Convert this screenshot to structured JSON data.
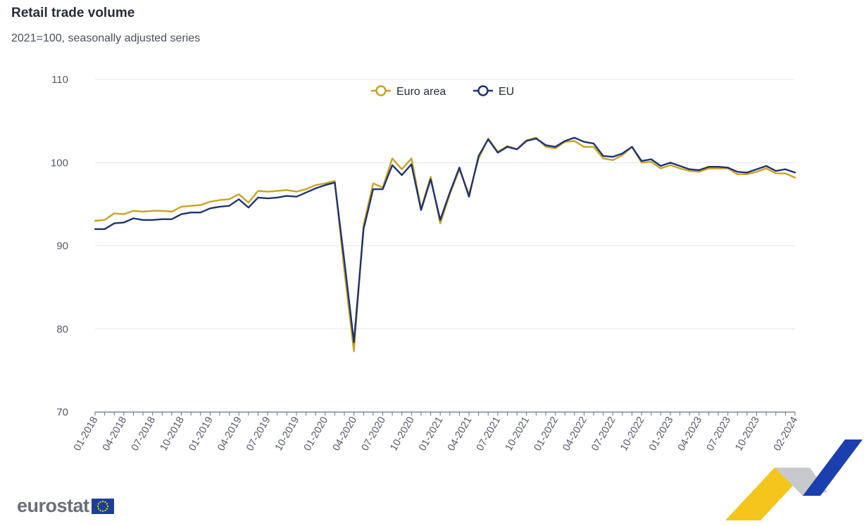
{
  "header": {
    "title": "Retail trade volume",
    "subtitle": "2021=100, seasonally adjusted series"
  },
  "brand": {
    "logo_text": "eurostat"
  },
  "colors": {
    "euro_area": "#c9a227",
    "eu": "#1e3370",
    "grid": "#e3e6ee",
    "axis": "#6b7080",
    "chevron_yellow": "#f3c20f",
    "chevron_grey": "#c8c9cc",
    "chevron_blue": "#1b3fae"
  },
  "chart_data": {
    "type": "line",
    "title": "Retail trade volume",
    "subtitle": "2021=100, seasonally adjusted series",
    "xlabel": "",
    "ylabel": "",
    "ylim": [
      70,
      110
    ],
    "yticks": [
      "70",
      "80",
      "90",
      "100",
      "110"
    ],
    "grid": true,
    "legend_position": "top-center",
    "xticks": [
      "01-2018",
      "04-2018",
      "07-2018",
      "10-2018",
      "01-2019",
      "04-2019",
      "07-2019",
      "10-2019",
      "01-2020",
      "04-2020",
      "07-2020",
      "10-2020",
      "01-2021",
      "04-2021",
      "07-2021",
      "10-2021",
      "01-2022",
      "04-2022",
      "07-2022",
      "10-2022",
      "01-2023",
      "04-2023",
      "07-2023",
      "10-2023",
      "02-2024"
    ],
    "series": [
      {
        "name": "Euro area",
        "values": [
          93.0,
          93.1,
          93.9,
          93.8,
          94.2,
          94.1,
          94.2,
          94.2,
          94.1,
          94.7,
          94.8,
          94.9,
          95.3,
          95.5,
          95.6,
          96.2,
          95.2,
          96.6,
          96.5,
          96.6,
          96.7,
          96.5,
          96.8,
          97.3,
          97.5,
          97.8,
          87.0,
          77.3,
          92.5,
          97.5,
          97.0,
          100.5,
          99.2,
          100.5,
          94.5,
          98.3,
          92.7,
          96.2,
          99.2,
          96.2,
          100.5,
          102.9,
          101.3,
          102.0,
          101.6,
          102.7,
          103.0,
          101.9,
          101.7,
          102.5,
          102.6,
          101.9,
          101.9,
          100.5,
          100.3,
          100.9,
          101.9,
          100.0,
          100.1,
          99.3,
          99.7,
          99.3,
          99.0,
          98.9,
          99.3,
          99.3,
          99.3,
          98.6,
          98.6,
          98.9,
          99.3,
          98.7,
          98.7,
          98.2
        ]
      },
      {
        "name": "EU",
        "values": [
          92.0,
          92.0,
          92.7,
          92.8,
          93.3,
          93.1,
          93.1,
          93.2,
          93.2,
          93.8,
          94.0,
          94.0,
          94.5,
          94.7,
          94.8,
          95.6,
          94.6,
          95.8,
          95.7,
          95.8,
          96.0,
          95.9,
          96.4,
          96.9,
          97.3,
          97.6,
          88.2,
          78.4,
          92.0,
          96.8,
          96.8,
          99.7,
          98.5,
          99.8,
          94.3,
          98.0,
          93.1,
          96.4,
          99.4,
          95.9,
          100.8,
          102.8,
          101.2,
          101.9,
          101.6,
          102.6,
          102.9,
          102.1,
          101.9,
          102.6,
          103.0,
          102.5,
          102.3,
          100.8,
          100.7,
          101.1,
          101.9,
          100.2,
          100.4,
          99.6,
          100.0,
          99.6,
          99.2,
          99.1,
          99.5,
          99.5,
          99.4,
          98.9,
          98.8,
          99.2,
          99.6,
          99.0,
          99.2,
          98.8
        ]
      }
    ]
  }
}
